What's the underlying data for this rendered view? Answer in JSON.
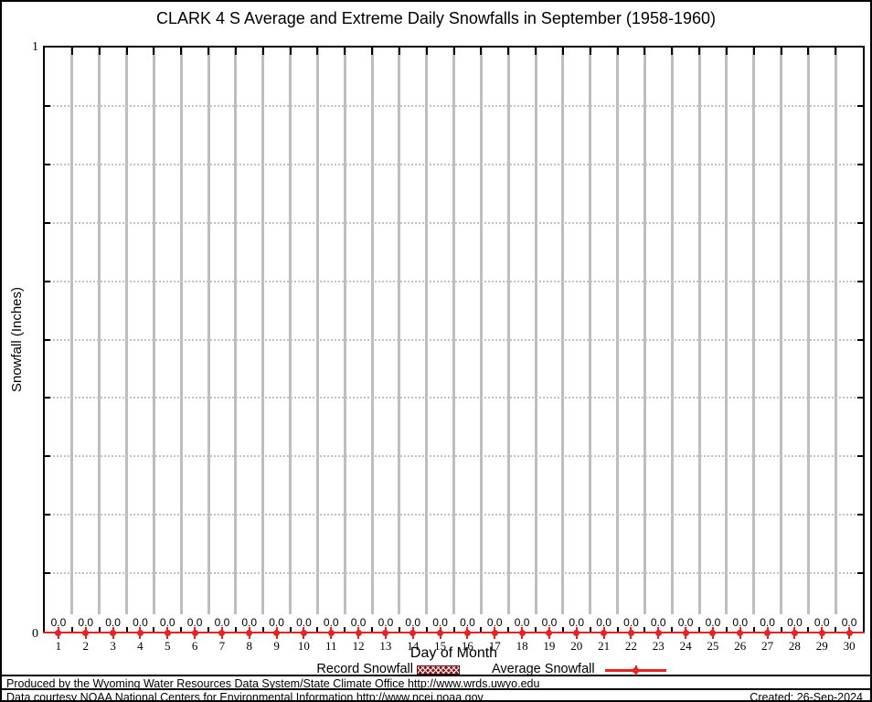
{
  "title": "CLARK 4 S Average and Extreme Daily Snowfalls in September (1958-1960)",
  "y_axis": {
    "label": "Snowfall (Inches)",
    "max_tick": "1",
    "min_tick": "0"
  },
  "x_axis": {
    "label": "Day of Month"
  },
  "legend": {
    "record_label": "Record Snowfall",
    "average_label": "Average Snowfall"
  },
  "footer": {
    "line1": "Produced by the Wyoming Water Resources Data System/State Climate Office http://www.wrds.uwyo.edu",
    "line2": "Data courtesy NOAA National Centers for Environmental Information http://www.ncei.noaa.gov",
    "created": "Created: 26-Sep-2024"
  },
  "colors": {
    "average_series": "#e62222",
    "record_series": "#8b1a1a",
    "gridline": "#bdbdbd"
  },
  "chart_data": {
    "type": "line",
    "title": "CLARK 4 S Average and Extreme Daily Snowfalls in September (1958-1960)",
    "xlabel": "Day of Month",
    "ylabel": "Snowfall (Inches)",
    "ylim": [
      0,
      1
    ],
    "yticks_labeled": [
      0,
      1
    ],
    "grid": true,
    "legend_position": "bottom",
    "x": [
      1,
      2,
      3,
      4,
      5,
      6,
      7,
      8,
      9,
      10,
      11,
      12,
      13,
      14,
      15,
      16,
      17,
      18,
      19,
      20,
      21,
      22,
      23,
      24,
      25,
      26,
      27,
      28,
      29,
      30
    ],
    "series": [
      {
        "name": "Record Snowfall",
        "values": [
          0,
          0,
          0,
          0,
          0,
          0,
          0,
          0,
          0,
          0,
          0,
          0,
          0,
          0,
          0,
          0,
          0,
          0,
          0,
          0,
          0,
          0,
          0,
          0,
          0,
          0,
          0,
          0,
          0,
          0
        ]
      },
      {
        "name": "Average Snowfall",
        "values": [
          0,
          0,
          0,
          0,
          0,
          0,
          0,
          0,
          0,
          0,
          0,
          0,
          0,
          0,
          0,
          0,
          0,
          0,
          0,
          0,
          0,
          0,
          0,
          0,
          0,
          0,
          0,
          0,
          0,
          0
        ]
      }
    ],
    "point_labels": [
      "0.0",
      "0.0",
      "0.0",
      "0.0",
      "0.0",
      "0.0",
      "0.0",
      "0.0",
      "0.0",
      "0.0",
      "0.0",
      "0.0",
      "0.0",
      "0.0",
      "0.0",
      "0.0",
      "0.0",
      "0.0",
      "0.0",
      "0.0",
      "0.0",
      "0.0",
      "0.0",
      "0.0",
      "0.0",
      "0.0",
      "0.0",
      "0.0",
      "0.0",
      "0.0"
    ]
  }
}
